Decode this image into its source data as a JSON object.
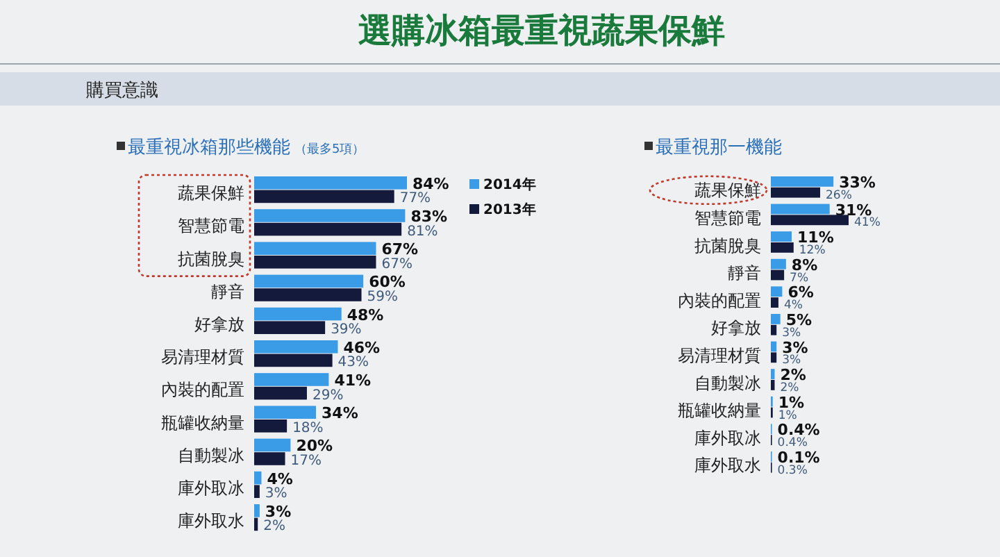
{
  "chart_data": [
    {
      "type": "bar",
      "orientation": "horizontal",
      "title": "最重視冰箱那些機能",
      "subtitle": "（最多5項）",
      "annotations": [
        "選購冰箱最重視蔬果保鮮",
        "購買意識"
      ],
      "categories": [
        "蔬果保鮮",
        "智慧節電",
        "抗菌脫臭",
        "靜音",
        "好拿放",
        "易清理材質",
        "內裝的配置",
        "瓶罐收納量",
        "自動製冰",
        "庫外取冰",
        "庫外取水"
      ],
      "series": [
        {
          "name": "2014年",
          "color": "#3a9be6",
          "values": [
            84,
            83,
            67,
            60,
            48,
            46,
            41,
            34,
            20,
            4,
            3
          ],
          "value_labels": [
            "84%",
            "83%",
            "67%",
            "60%",
            "48%",
            "46%",
            "41%",
            "34%",
            "20%",
            "4%",
            "3%"
          ]
        },
        {
          "name": "2013年",
          "color": "#141a3c",
          "values": [
            77,
            81,
            67,
            59,
            39,
            43,
            29,
            18,
            17,
            3,
            2
          ],
          "value_labels": [
            "77%",
            "81%",
            "67%",
            "59%",
            "39%",
            "43%",
            "29%",
            "18%",
            "17%",
            "3%",
            "2%"
          ]
        }
      ],
      "legend": "top right"
    },
    {
      "type": "bar",
      "orientation": "horizontal",
      "title": "最重視那一機能",
      "categories": [
        "蔬果保鮮",
        "智慧節電",
        "抗菌脫臭",
        "靜音",
        "內裝的配置",
        "好拿放",
        "易清理材質",
        "自動製冰",
        "瓶罐收納量",
        "庫外取冰",
        "庫外取水"
      ],
      "series": [
        {
          "color": "#3a9be6",
          "values": [
            33,
            31,
            11,
            8,
            6,
            5,
            3,
            2,
            1,
            0.4,
            0.1
          ],
          "value_labels": [
            "33%",
            "31%",
            "11%",
            "8%",
            "6%",
            "5%",
            "3%",
            "2%",
            "1%",
            "0.4%",
            "0.1%"
          ]
        },
        {
          "color": "#141a3c",
          "values": [
            26,
            41,
            12,
            7,
            4,
            3,
            3,
            2,
            1,
            0.4,
            0.3
          ],
          "value_labels": [
            "26%",
            "41%",
            "12%",
            "7%",
            "4%",
            "3%",
            "3%",
            "2%",
            "1%",
            "0.4%",
            "0.3%"
          ]
        }
      ]
    }
  ]
}
